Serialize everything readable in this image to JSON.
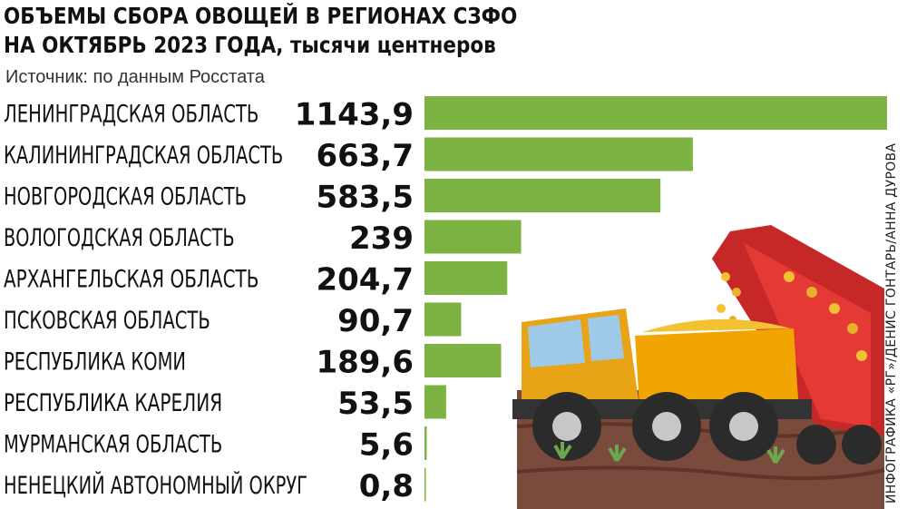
{
  "title_line1": "ОБЪЕМЫ СБОРА ОВОЩЕЙ В РЕГИОНАХ СЗФО",
  "title_line2": "НА ОКТЯБРЬ 2023 ГОДА, тысячи центнеров",
  "source": "Источник: по данным Росстата",
  "credit": "ИНФОГРАФИКА «РГ»/ДЕНИС ГОНТАРЬ/АННА ДУРОВА",
  "colors": {
    "bar": "#7cb342",
    "text": "#111111"
  },
  "chart_data": {
    "type": "bar",
    "orientation": "horizontal",
    "categories": [
      "ЛЕНИНГРАДСКАЯ ОБЛАСТЬ",
      "КАЛИНИНГРАДСКАЯ ОБЛАСТЬ",
      "НОВГОРОДСКАЯ ОБЛАСТЬ",
      "ВОЛОГОДСКАЯ ОБЛАСТЬ",
      "АРХАНГЕЛЬСКАЯ ОБЛАСТЬ",
      "ПСКОВСКАЯ ОБЛАСТЬ",
      "РЕСПУБЛИКА КОМИ",
      "РЕСПУБЛИКА КАРЕЛИЯ",
      "МУРМАНСКАЯ ОБЛАСТЬ",
      "НЕНЕЦКИЙ АВТОНОМНЫЙ ОКРУГ"
    ],
    "values": [
      1143.9,
      663.7,
      583.5,
      239,
      204.7,
      90.7,
      189.6,
      53.5,
      5.6,
      0.8
    ],
    "value_labels": [
      "1143,9",
      "663,7",
      "583,5",
      "239",
      "204,7",
      "90,7",
      "189,6",
      "53,5",
      "5,6",
      "0,8"
    ],
    "xlim": [
      0,
      1143.9
    ],
    "grid": false,
    "legend": "none"
  }
}
